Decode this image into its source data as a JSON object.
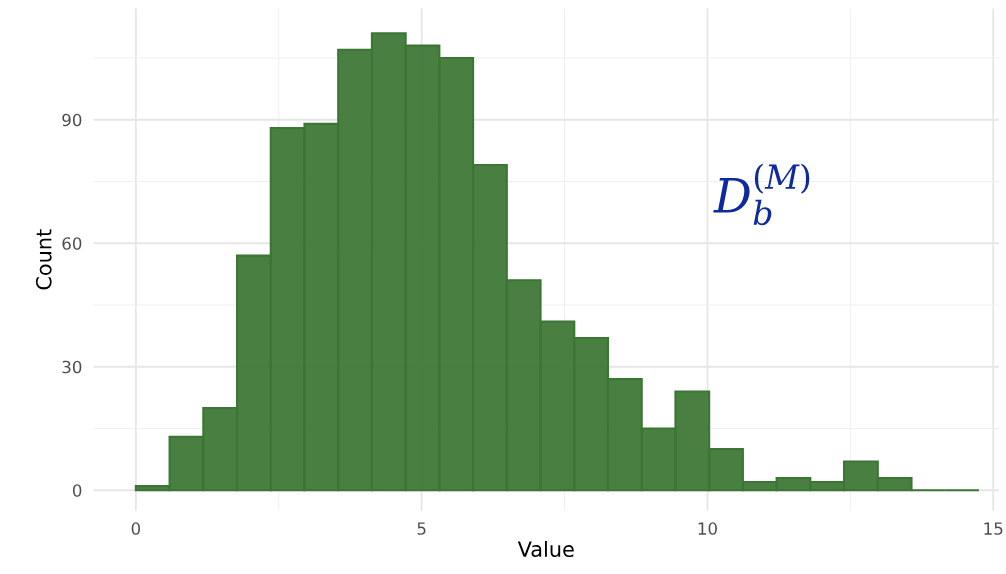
{
  "chart_data": {
    "type": "histogram",
    "xlabel": "Value",
    "ylabel": "Count",
    "bins": [
      0,
      0.59,
      1.18,
      1.77,
      2.36,
      2.95,
      3.54,
      4.13,
      4.72,
      5.31,
      5.9,
      6.49,
      7.08,
      7.67,
      8.26,
      8.85,
      9.44,
      10.03,
      10.62,
      11.21,
      11.8,
      12.39,
      12.98,
      13.57,
      14.16,
      14.75
    ],
    "values": [
      1,
      13,
      20,
      57,
      88,
      89,
      107,
      111,
      108,
      105,
      79,
      51,
      41,
      37,
      27,
      15,
      24,
      10,
      2,
      3,
      2,
      7,
      3,
      0,
      0
    ],
    "color": "#3b7634",
    "xlim": [
      -0.74,
      15.1
    ],
    "xticks": [
      0,
      5,
      10,
      15
    ],
    "ylim": [
      -5,
      117
    ],
    "yticks": [
      0,
      30,
      60,
      90
    ],
    "grid": true,
    "annotations": [
      "D$^{(M)}$$_{b}$"
    ]
  }
}
